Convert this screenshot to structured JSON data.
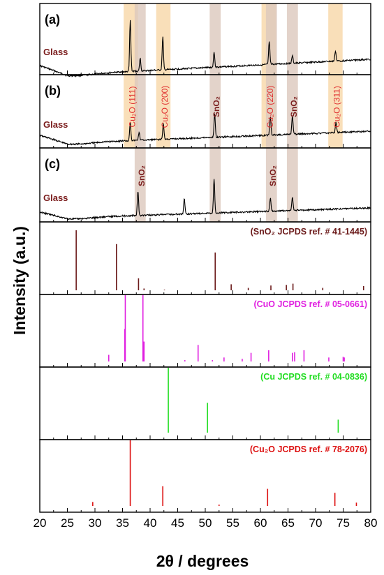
{
  "chart_data": {
    "type": "stacked XRD patterns",
    "xlabel": "2θ /  degrees",
    "ylabel": "Intensity (a.u.)",
    "xlim": [
      20,
      80
    ],
    "xticks": [
      "20",
      "25",
      "30",
      "35",
      "40",
      "45",
      "50",
      "55",
      "60",
      "65",
      "70",
      "75",
      "80"
    ],
    "panels": [
      {
        "id": "a",
        "tag": "(a)",
        "substrate": "Glass",
        "peaks": [
          [
            36.4,
            1.0
          ],
          [
            38.2,
            0.25
          ],
          [
            42.3,
            0.65
          ],
          [
            51.6,
            0.3
          ],
          [
            61.6,
            0.45
          ],
          [
            65.8,
            0.15
          ],
          [
            73.6,
            0.2
          ]
        ],
        "highlights": [
          {
            "center": 36.5,
            "kind": "cu2o"
          },
          {
            "center": 38.2,
            "kind": "sno2"
          },
          {
            "center": 42.4,
            "kind": "cu2o"
          },
          {
            "center": 51.8,
            "kind": "sno2"
          },
          {
            "center": 61.5,
            "kind": "cu2o"
          },
          {
            "center": 62.0,
            "kind": "sno2"
          },
          {
            "center": 65.8,
            "kind": "sno2"
          },
          {
            "center": 73.6,
            "kind": "cu2o"
          }
        ]
      },
      {
        "id": "b",
        "tag": "(b)",
        "substrate": "Glass",
        "peaks": [
          [
            36.4,
            0.35
          ],
          [
            38.0,
            0.15
          ],
          [
            42.4,
            0.3
          ],
          [
            51.7,
            0.45
          ],
          [
            61.8,
            0.35
          ],
          [
            65.8,
            0.35
          ],
          [
            73.7,
            0.2
          ]
        ],
        "highlights": [
          {
            "center": 36.5,
            "kind": "cu2o",
            "label": "Cu₂O (111)"
          },
          {
            "center": 38.2,
            "kind": "sno2"
          },
          {
            "center": 42.4,
            "kind": "cu2o",
            "label": "Cu₂O (200)"
          },
          {
            "center": 51.8,
            "kind": "sno2",
            "label": "SnO₂"
          },
          {
            "center": 61.5,
            "kind": "cu2o",
            "label": "Cu₂O (220)"
          },
          {
            "center": 62.0,
            "kind": "sno2"
          },
          {
            "center": 65.8,
            "kind": "sno2",
            "label": "SnO₂"
          },
          {
            "center": 73.6,
            "kind": "cu2o",
            "label": "Cu₂O (311)"
          }
        ]
      },
      {
        "id": "c",
        "tag": "(c)",
        "substrate": "Glass",
        "peaks": [
          [
            37.8,
            0.45
          ],
          [
            46.2,
            0.3
          ],
          [
            51.6,
            0.65
          ],
          [
            61.8,
            0.25
          ],
          [
            65.8,
            0.25
          ]
        ],
        "highlights": [
          {
            "center": 38.2,
            "kind": "sno2",
            "label": "SnO₂"
          },
          {
            "center": 51.8,
            "kind": "sno2"
          },
          {
            "center": 62.0,
            "kind": "sno2",
            "label": "SnO₂"
          },
          {
            "center": 65.8,
            "kind": "sno2"
          }
        ]
      }
    ],
    "references": [
      {
        "id": "sno2",
        "label": "(SnO₂ JCPDS ref. # 41-1445)",
        "color": "#6b1a1a",
        "peaks": [
          [
            26.6,
            1.0
          ],
          [
            33.9,
            0.77
          ],
          [
            37.9,
            0.2
          ],
          [
            38.9,
            0.03
          ],
          [
            42.6,
            0.01
          ],
          [
            51.8,
            0.63
          ],
          [
            54.7,
            0.1
          ],
          [
            57.8,
            0.04
          ],
          [
            61.9,
            0.08
          ],
          [
            64.7,
            0.09
          ],
          [
            65.9,
            0.11
          ],
          [
            71.3,
            0.04
          ],
          [
            78.7,
            0.07
          ]
        ]
      },
      {
        "id": "cuo",
        "label": "(CuO JCPDS ref. # 05-0661)",
        "color": "#e020e0",
        "peaks": [
          [
            32.5,
            0.1
          ],
          [
            35.4,
            0.49
          ],
          [
            35.5,
            1.0
          ],
          [
            38.7,
            1.0
          ],
          [
            38.9,
            0.3
          ],
          [
            46.3,
            0.02
          ],
          [
            48.7,
            0.25
          ],
          [
            51.3,
            0.02
          ],
          [
            53.4,
            0.06
          ],
          [
            56.7,
            0.04
          ],
          [
            58.3,
            0.13
          ],
          [
            61.5,
            0.17
          ],
          [
            65.8,
            0.13
          ],
          [
            66.2,
            0.14
          ],
          [
            67.9,
            0.17
          ],
          [
            72.4,
            0.06
          ],
          [
            75.0,
            0.07
          ],
          [
            75.2,
            0.06
          ]
        ]
      },
      {
        "id": "cu",
        "label": "(Cu JCPDS ref. # 04-0836)",
        "color": "#22dd22",
        "peaks": [
          [
            43.3,
            1.0
          ],
          [
            50.4,
            0.46
          ],
          [
            74.1,
            0.2
          ]
        ]
      },
      {
        "id": "cu2o",
        "label": "(Cu₂O JCPDS ref. # 78-2076)",
        "color": "#dd1111",
        "peaks": [
          [
            29.6,
            0.06
          ],
          [
            36.4,
            1.0
          ],
          [
            42.3,
            0.3
          ],
          [
            52.5,
            0.02
          ],
          [
            61.3,
            0.26
          ],
          [
            73.5,
            0.2
          ],
          [
            77.4,
            0.05
          ]
        ]
      }
    ],
    "colors": {
      "frame": "#000000",
      "glass_label": "#7a1c1c",
      "peak_label": "#e03030",
      "band_cu2o": "#f8d7a8",
      "band_sno2": "#dcc8bd"
    }
  }
}
